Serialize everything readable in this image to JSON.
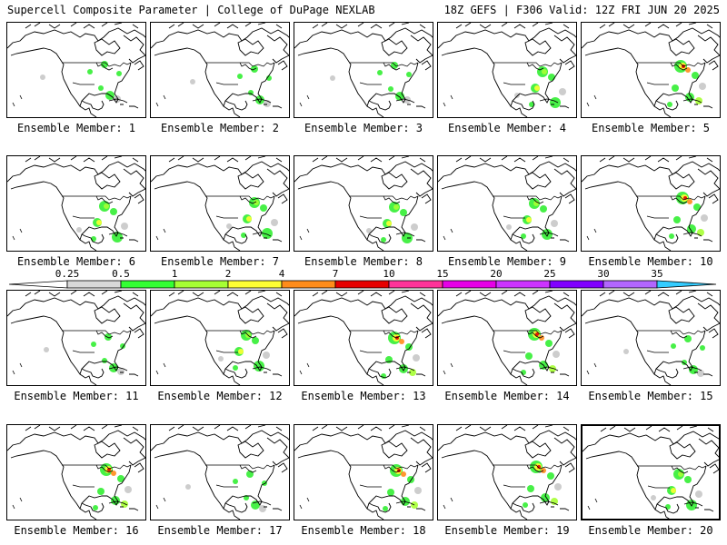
{
  "header": {
    "left": "Supercell Composite Parameter | College of DuPage NEXLAB",
    "right": "18Z GEFS | F306 Valid: 12Z FRI JUN 20 2025"
  },
  "colorbar": {
    "ticks": [
      "0.25",
      "0.5",
      "1",
      "2",
      "4",
      "7",
      "10",
      "15",
      "20",
      "25",
      "30",
      "35"
    ],
    "colors": [
      "#d8d8d8",
      "#33ff33",
      "#a6ff33",
      "#ffff33",
      "#ff8c1a",
      "#e60000",
      "#ff3399",
      "#e600e6",
      "#cc33ff",
      "#8000ff",
      "#b266ff",
      "#33ccff"
    ]
  },
  "colors": {
    "land": "#ffffff",
    "coast": "#000000",
    "gray": "#c8c8c8",
    "green": "#33ee33",
    "lime": "#a6ff33",
    "yellow": "#ffff33",
    "orange": "#ff8c1a",
    "red": "#e60000"
  },
  "panels": [
    {
      "label": "Ensemble Member: 1",
      "level": "low"
    },
    {
      "label": "Ensemble Member: 2",
      "level": "low"
    },
    {
      "label": "Ensemble Member: 3",
      "level": "low"
    },
    {
      "label": "Ensemble Member: 4",
      "level": "moderate"
    },
    {
      "label": "Ensemble Member: 5",
      "level": "high"
    },
    {
      "label": "Ensemble Member: 6",
      "level": "moderate"
    },
    {
      "label": "Ensemble Member: 7",
      "level": "moderate"
    },
    {
      "label": "Ensemble Member: 8",
      "level": "moderate"
    },
    {
      "label": "Ensemble Member: 9",
      "level": "moderate"
    },
    {
      "label": "Ensemble Member: 10",
      "level": "high"
    },
    {
      "label": "Ensemble Member: 11",
      "level": "low"
    },
    {
      "label": "Ensemble Member: 12",
      "level": "moderate"
    },
    {
      "label": "Ensemble Member: 13",
      "level": "high"
    },
    {
      "label": "Ensemble Member: 14",
      "level": "high"
    },
    {
      "label": "Ensemble Member: 15",
      "level": "low"
    },
    {
      "label": "Ensemble Member: 16",
      "level": "high"
    },
    {
      "label": "Ensemble Member: 17",
      "level": "low"
    },
    {
      "label": "Ensemble Member: 18",
      "level": "high"
    },
    {
      "label": "Ensemble Member: 19",
      "level": "high"
    },
    {
      "label": "Ensemble Member: 20",
      "level": "moderate"
    }
  ]
}
